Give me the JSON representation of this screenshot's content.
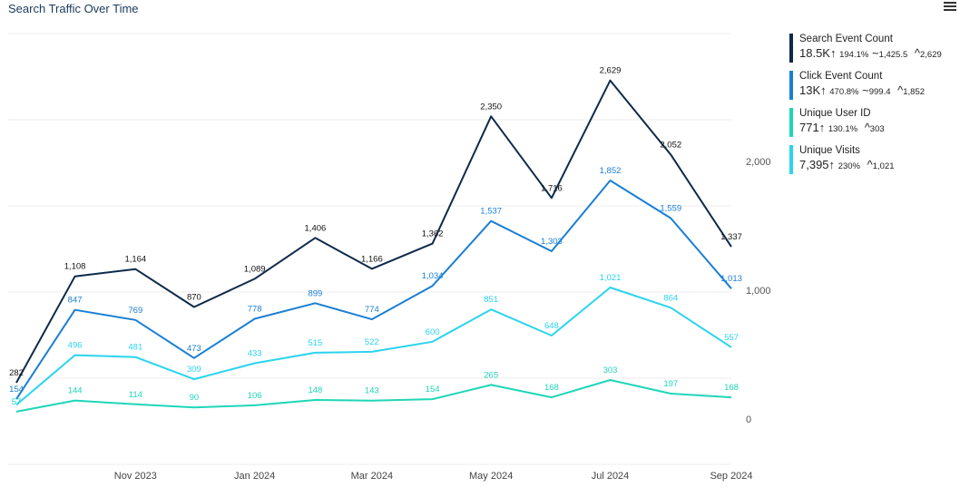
{
  "title": "Search Traffic Over Time",
  "menu_icon": "menu-icon",
  "legend": [
    {
      "name": "Search Event Count",
      "total": "18.5K",
      "change": "194.1%",
      "avg": "1,425.5",
      "max": "2,629",
      "color": "#0d2a4a"
    },
    {
      "name": "Click Event Count",
      "total": "13K",
      "change": "470.8%",
      "avg": "999.4",
      "max": "1,852",
      "color": "#1a7fd4"
    },
    {
      "name": "Unique User ID",
      "total": "771",
      "change": "130.1%",
      "avg": "",
      "max": "303",
      "color": "#1ed6b8"
    },
    {
      "name": "Unique Visits",
      "total": "7,395",
      "change": "230%",
      "avg": "",
      "max": "1,021",
      "color": "#2ad4ee"
    }
  ],
  "symbols": {
    "up": "↑",
    "avg": "~",
    "max": "^"
  },
  "chart_data": {
    "type": "line",
    "x": [
      "2023-09-16",
      "2023-10-16",
      "2023-11-16",
      "2023-12-16",
      "2024-01-16",
      "2024-02-16",
      "2024-03-16",
      "2024-04-16",
      "2024-05-16",
      "2024-06-16",
      "2024-07-16",
      "2024-08-16",
      "2024-09-16"
    ],
    "x_ticks": [
      "Nov 2023",
      "Jan 2024",
      "Mar 2024",
      "May 2024",
      "Jul 2024",
      "Sep 2024"
    ],
    "y_ticks": [
      "0",
      "1,000",
      "2,000"
    ],
    "ylim": [
      0,
      2800
    ],
    "grid": true,
    "legend_position": "right",
    "series": [
      {
        "name": "Search Event Count",
        "color": "#0d2a4a",
        "values": [
          282,
          1108,
          1164,
          870,
          1089,
          1406,
          1166,
          1362,
          2350,
          1716,
          2629,
          2052,
          1337
        ],
        "labels": [
          "282",
          "1,108",
          "1,164",
          "870",
          "1,089",
          "1,406",
          "1,166",
          "1,362",
          "2,350",
          "1,716",
          "2,629",
          "2,052",
          "1,337"
        ]
      },
      {
        "name": "Click Event Count",
        "color": "#1a7fd4",
        "values": [
          154,
          847,
          769,
          473,
          778,
          899,
          774,
          1034,
          1537,
          1303,
          1852,
          1559,
          1013
        ],
        "labels": [
          "154",
          "847",
          "769",
          "473",
          "778",
          "899",
          "774",
          "1,034",
          "1,537",
          "1,303",
          "1,852",
          "1,559",
          "1,013"
        ]
      },
      {
        "name": "Unique Visits",
        "color": "#2ad4ee",
        "values": [
          110,
          496,
          481,
          309,
          433,
          515,
          522,
          600,
          851,
          648,
          1021,
          864,
          557
        ],
        "labels": [
          "",
          "496",
          "481",
          "309",
          "433",
          "515",
          "522",
          "600",
          "851",
          "648",
          "1,021",
          "864",
          "557"
        ]
      },
      {
        "name": "Unique User ID",
        "color": "#1ed6b8",
        "values": [
          57,
          144,
          114,
          90,
          106,
          148,
          143,
          154,
          265,
          168,
          303,
          197,
          168
        ],
        "labels": [
          "57",
          "144",
          "114",
          "90",
          "106",
          "148",
          "143",
          "154",
          "265",
          "168",
          "303",
          "197",
          "168"
        ]
      }
    ]
  }
}
